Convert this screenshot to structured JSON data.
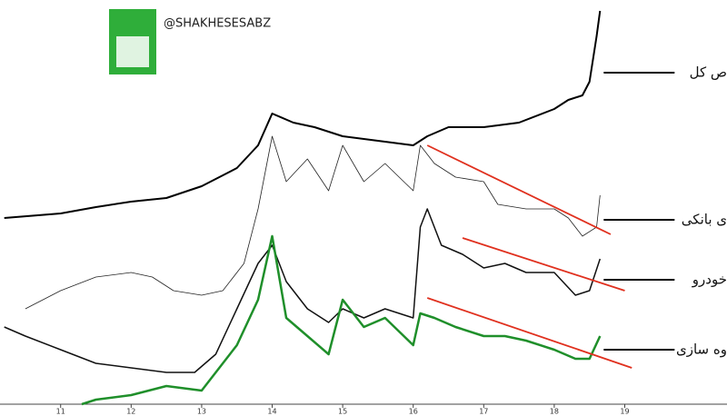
{
  "chart_data": {
    "type": "line",
    "watermark": "@SHAKHESESABZ",
    "xlim": [
      10.14,
      20.45
    ],
    "ylim": [
      0,
      458
    ],
    "xticks": [
      11,
      12,
      13,
      14,
      15,
      16,
      17,
      18,
      19
    ],
    "series": [
      {
        "name": "ص کل",
        "color": "#000000",
        "width": 2,
        "x": [
          10.2,
          11,
          11.5,
          12,
          12.5,
          13,
          13.5,
          13.8,
          14,
          14.3,
          14.6,
          15,
          15.5,
          16,
          16.2,
          16.5,
          17,
          17.5,
          18,
          18.2,
          18.4,
          18.5,
          18.6,
          18.65
        ],
        "values": [
          218,
          223,
          230,
          236,
          240,
          253,
          273,
          298,
          333,
          323,
          318,
          308,
          303,
          298,
          308,
          318,
          318,
          323,
          338,
          348,
          353,
          368,
          418,
          446
        ]
      },
      {
        "name": "ی بانکی",
        "color": "#222222",
        "width": 0.8,
        "x": [
          10.5,
          11,
          11.5,
          12,
          12.3,
          12.6,
          13,
          13.3,
          13.6,
          13.8,
          14,
          14.2,
          14.5,
          14.8,
          15,
          15.3,
          15.6,
          16,
          16.1,
          16.3,
          16.6,
          17,
          17.2,
          17.6,
          18,
          18.2,
          18.4,
          18.6,
          18.65
        ],
        "values": [
          118,
          138,
          153,
          158,
          153,
          138,
          133,
          138,
          168,
          228,
          308,
          258,
          283,
          248,
          298,
          258,
          278,
          248,
          298,
          278,
          263,
          258,
          233,
          228,
          228,
          218,
          198,
          208,
          243
        ]
      },
      {
        "name": "خودرو",
        "color": "#111111",
        "width": 1.5,
        "x": [
          10.2,
          10.5,
          11,
          11.5,
          12,
          12.5,
          12.9,
          13.2,
          13.5,
          13.8,
          14,
          14.2,
          14.5,
          14.8,
          15,
          15.3,
          15.6,
          16,
          16.1,
          16.2,
          16.4,
          16.7,
          17,
          17.3,
          17.6,
          18,
          18.3,
          18.5,
          18.65
        ],
        "values": [
          98,
          88,
          73,
          58,
          53,
          48,
          48,
          68,
          118,
          168,
          188,
          148,
          118,
          103,
          118,
          108,
          118,
          108,
          208,
          228,
          188,
          178,
          163,
          168,
          158,
          158,
          133,
          138,
          173
        ]
      },
      {
        "name": "وه سازی",
        "color": "#1f8f2a",
        "width": 2.5,
        "x": [
          11.3,
          11.5,
          12,
          12.5,
          13,
          13.3,
          13.5,
          13.8,
          14,
          14.2,
          14.5,
          14.8,
          15,
          15.3,
          15.6,
          16,
          16.1,
          16.3,
          16.6,
          17,
          17.3,
          17.6,
          18,
          18.3,
          18.5,
          18.65
        ],
        "values": [
          13,
          18,
          23,
          33,
          28,
          58,
          78,
          128,
          198,
          108,
          88,
          68,
          128,
          98,
          108,
          78,
          113,
          108,
          98,
          88,
          88,
          83,
          73,
          63,
          63,
          88
        ]
      }
    ],
    "trendlines": [
      {
        "color": "#e0301e",
        "x": [
          16.2,
          18.8
        ],
        "values": [
          298,
          200
        ]
      },
      {
        "color": "#e0301e",
        "x": [
          16.7,
          19
        ],
        "values": [
          196,
          138
        ]
      },
      {
        "color": "#e0301e",
        "x": [
          16.2,
          19.1
        ],
        "values": [
          130,
          53
        ]
      }
    ]
  }
}
